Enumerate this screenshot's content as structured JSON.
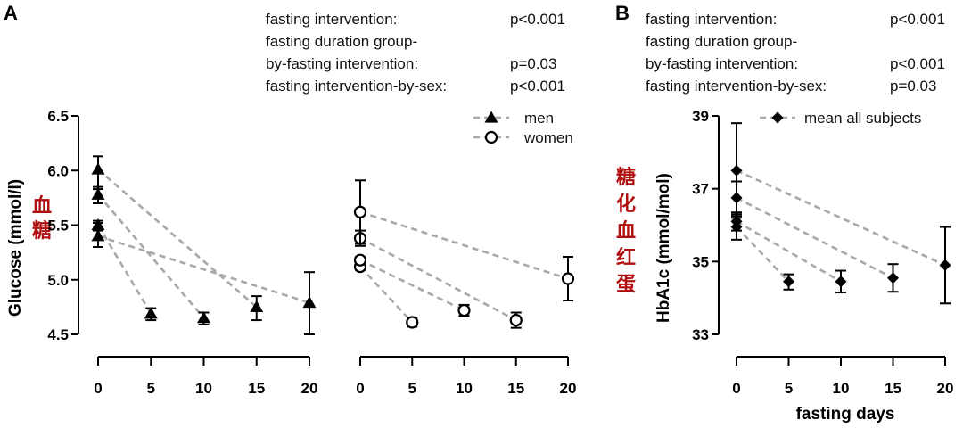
{
  "panels": {
    "A": {
      "letter": "A",
      "stats": [
        {
          "label": "fasting intervention:",
          "value": "p<0.001"
        },
        {
          "label": "fasting duration group-",
          "value": ""
        },
        {
          "label": "by-fasting intervention:",
          "value": "p=0.03"
        },
        {
          "label": "fasting intervention-by-sex:",
          "value": "p<0.001"
        }
      ]
    },
    "B": {
      "letter": "B",
      "stats": [
        {
          "label": "fasting intervention:",
          "value": "p<0.001"
        },
        {
          "label": "fasting duration group-",
          "value": ""
        },
        {
          "label": "by-fasting intervention:",
          "value": "p<0.001"
        },
        {
          "label": "fasting intervention-by-sex:",
          "value": "p=0.03"
        }
      ]
    }
  },
  "chart_data": [
    {
      "type": "scatter",
      "panel": "A",
      "subplot": "men",
      "ylabel": "Glucose (mmol/l)",
      "ylabel_cn": "血糖",
      "ylim": [
        4.5,
        6.5
      ],
      "yticks": [
        4.5,
        5.0,
        5.5,
        6.0,
        6.5
      ],
      "ytick_labels": [
        "4.5",
        "5.0",
        "5.5",
        "6.0",
        "6.5"
      ],
      "xticks": [
        0,
        5,
        10,
        15,
        20
      ],
      "marker": "triangle",
      "legend": [
        {
          "name": "men",
          "marker": "triangle"
        },
        {
          "name": "women",
          "marker": "circle"
        }
      ],
      "series": [
        {
          "x": [
            0,
            5
          ],
          "y": [
            5.5,
            4.69
          ],
          "err": [
            [
              0.05,
              0.04
            ],
            [
              0.06,
              0.05
            ]
          ]
        },
        {
          "x": [
            0,
            10
          ],
          "y": [
            5.78,
            4.65
          ],
          "err": [
            [
              0.08,
              0.07
            ],
            [
              0.06,
              0.05
            ]
          ]
        },
        {
          "x": [
            0,
            15
          ],
          "y": [
            6.01,
            4.75
          ],
          "err": [
            [
              0.18,
              0.12
            ],
            [
              0.12,
              0.1
            ]
          ]
        },
        {
          "x": [
            0,
            20
          ],
          "y": [
            5.4,
            4.79
          ],
          "err": [
            [
              0.1,
              0.12
            ],
            [
              0.29,
              0.28
            ]
          ]
        }
      ]
    },
    {
      "type": "scatter",
      "panel": "A",
      "subplot": "women",
      "ylim": [
        4.5,
        6.5
      ],
      "xticks": [
        0,
        5,
        10,
        15,
        20
      ],
      "marker": "circle",
      "series": [
        {
          "x": [
            0,
            5
          ],
          "y": [
            5.12,
            4.61
          ],
          "err": [
            [
              0.03,
              0.03
            ],
            [
              0.04,
              0.04
            ]
          ]
        },
        {
          "x": [
            0,
            10
          ],
          "y": [
            5.18,
            4.72
          ],
          "err": [
            [
              0.04,
              0.03
            ],
            [
              0.05,
              0.05
            ]
          ]
        },
        {
          "x": [
            0,
            15
          ],
          "y": [
            5.38,
            4.63
          ],
          "err": [
            [
              0.07,
              0.07
            ],
            [
              0.07,
              0.07
            ]
          ]
        },
        {
          "x": [
            0,
            20
          ],
          "y": [
            5.62,
            5.01
          ],
          "err": [
            [
              0.29,
              0.29
            ],
            [
              0.2,
              0.2
            ]
          ]
        }
      ]
    },
    {
      "type": "scatter",
      "panel": "B",
      "ylabel": "HbA1c (mmol/mol)",
      "ylabel_cn": "糖化血红蛋",
      "xlabel": "fasting days",
      "ylim": [
        33,
        39
      ],
      "yticks": [
        33,
        35,
        37,
        39
      ],
      "ytick_labels": [
        "33",
        "35",
        "37",
        "39"
      ],
      "xticks": [
        0,
        5,
        10,
        15,
        20
      ],
      "marker": "diamond",
      "legend": [
        {
          "name": "mean all subjects",
          "marker": "diamond"
        }
      ],
      "series": [
        {
          "x": [
            0,
            5
          ],
          "y": [
            35.95,
            34.45
          ],
          "err": [
            [
              0.35,
              0.3
            ],
            [
              0.22,
              0.2
            ]
          ]
        },
        {
          "x": [
            0,
            10
          ],
          "y": [
            36.1,
            34.45
          ],
          "err": [
            [
              0.25,
              0.25
            ],
            [
              0.3,
              0.3
            ]
          ]
        },
        {
          "x": [
            0,
            15
          ],
          "y": [
            36.75,
            34.55
          ],
          "err": [
            [
              0.45,
              0.45
            ],
            [
              0.38,
              0.38
            ]
          ]
        },
        {
          "x": [
            0,
            20
          ],
          "y": [
            37.5,
            34.9
          ],
          "err": [
            [
              1.3,
              1.3
            ],
            [
              1.05,
              1.05
            ]
          ]
        }
      ]
    }
  ]
}
